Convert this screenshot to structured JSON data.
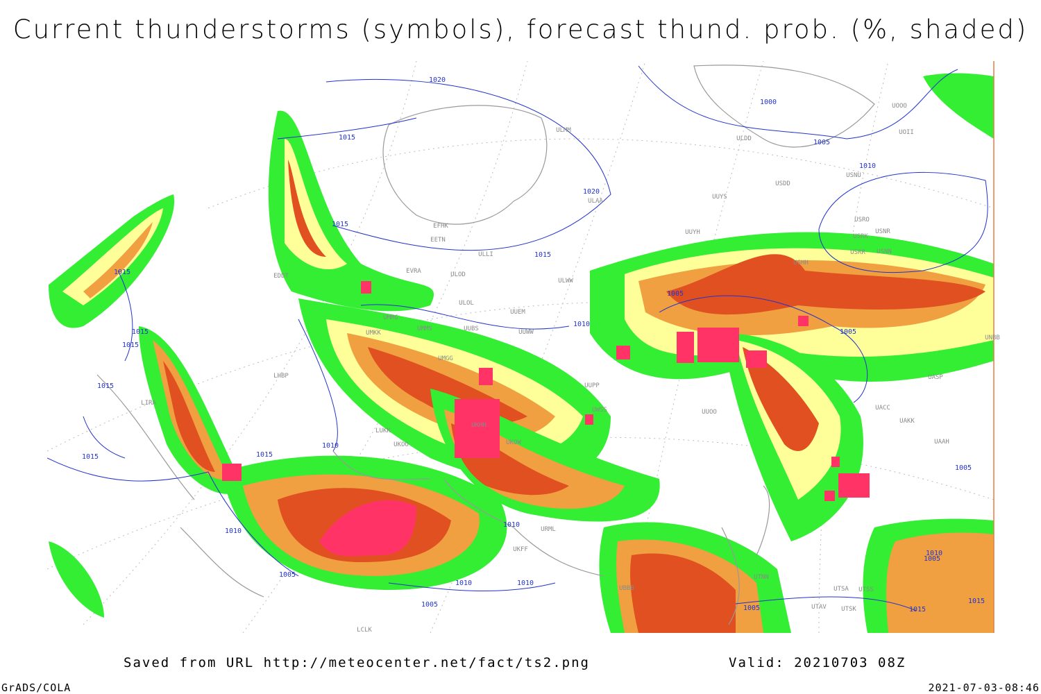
{
  "header": {
    "title": "Current thunderstorms (symbols), forecast thund. prob. (%, shaded)"
  },
  "footer": {
    "saved": "Saved from URL http://meteocenter.net/fact/ts2.png",
    "valid": "Valid: 20210703 08Z",
    "software": "GrADS/COLA",
    "timestamp": "2021-07-03-08:46"
  },
  "map": {
    "isobar_labels": [
      "1020",
      "1015",
      "1015",
      "1020",
      "1015",
      "1000",
      "1005",
      "1010",
      "1005",
      "1005",
      "1010",
      "1015",
      "1015",
      "1015",
      "1015",
      "1015",
      "1015",
      "1010",
      "1010",
      "1005",
      "1010",
      "1010",
      "1010",
      "1005",
      "1005",
      "1005",
      "1010",
      "1005",
      "1015",
      "1015"
    ],
    "stations": [
      "ULMM",
      "ULDD",
      "UOOO",
      "UOII",
      "USNU",
      "USDD",
      "UUYS",
      "ULAA",
      "USRO",
      "USRK",
      "USNR",
      "USRR",
      "USNN",
      "EFHK",
      "EETN",
      "ULLI",
      "UUYH",
      "USHH",
      "EVRA",
      "ULOD",
      "EDDT",
      "ULWW",
      "ULOL",
      "UUEM",
      "UMMG",
      "UMMS",
      "UUBS",
      "UUWW",
      "UNBB",
      "UMKK",
      "LHBP",
      "UMGG",
      "UUPP",
      "UWSS",
      "UACC",
      "UAKK",
      "UASP",
      "LIRA",
      "LUKK",
      "UKOO",
      "UKHH",
      "UKOW",
      "UUOO",
      "UAAH",
      "URML",
      "UKFF",
      "UBBB",
      "UTNN",
      "UTSA",
      "UTSS",
      "UTAV",
      "UTSK",
      "LCLK"
    ]
  }
}
